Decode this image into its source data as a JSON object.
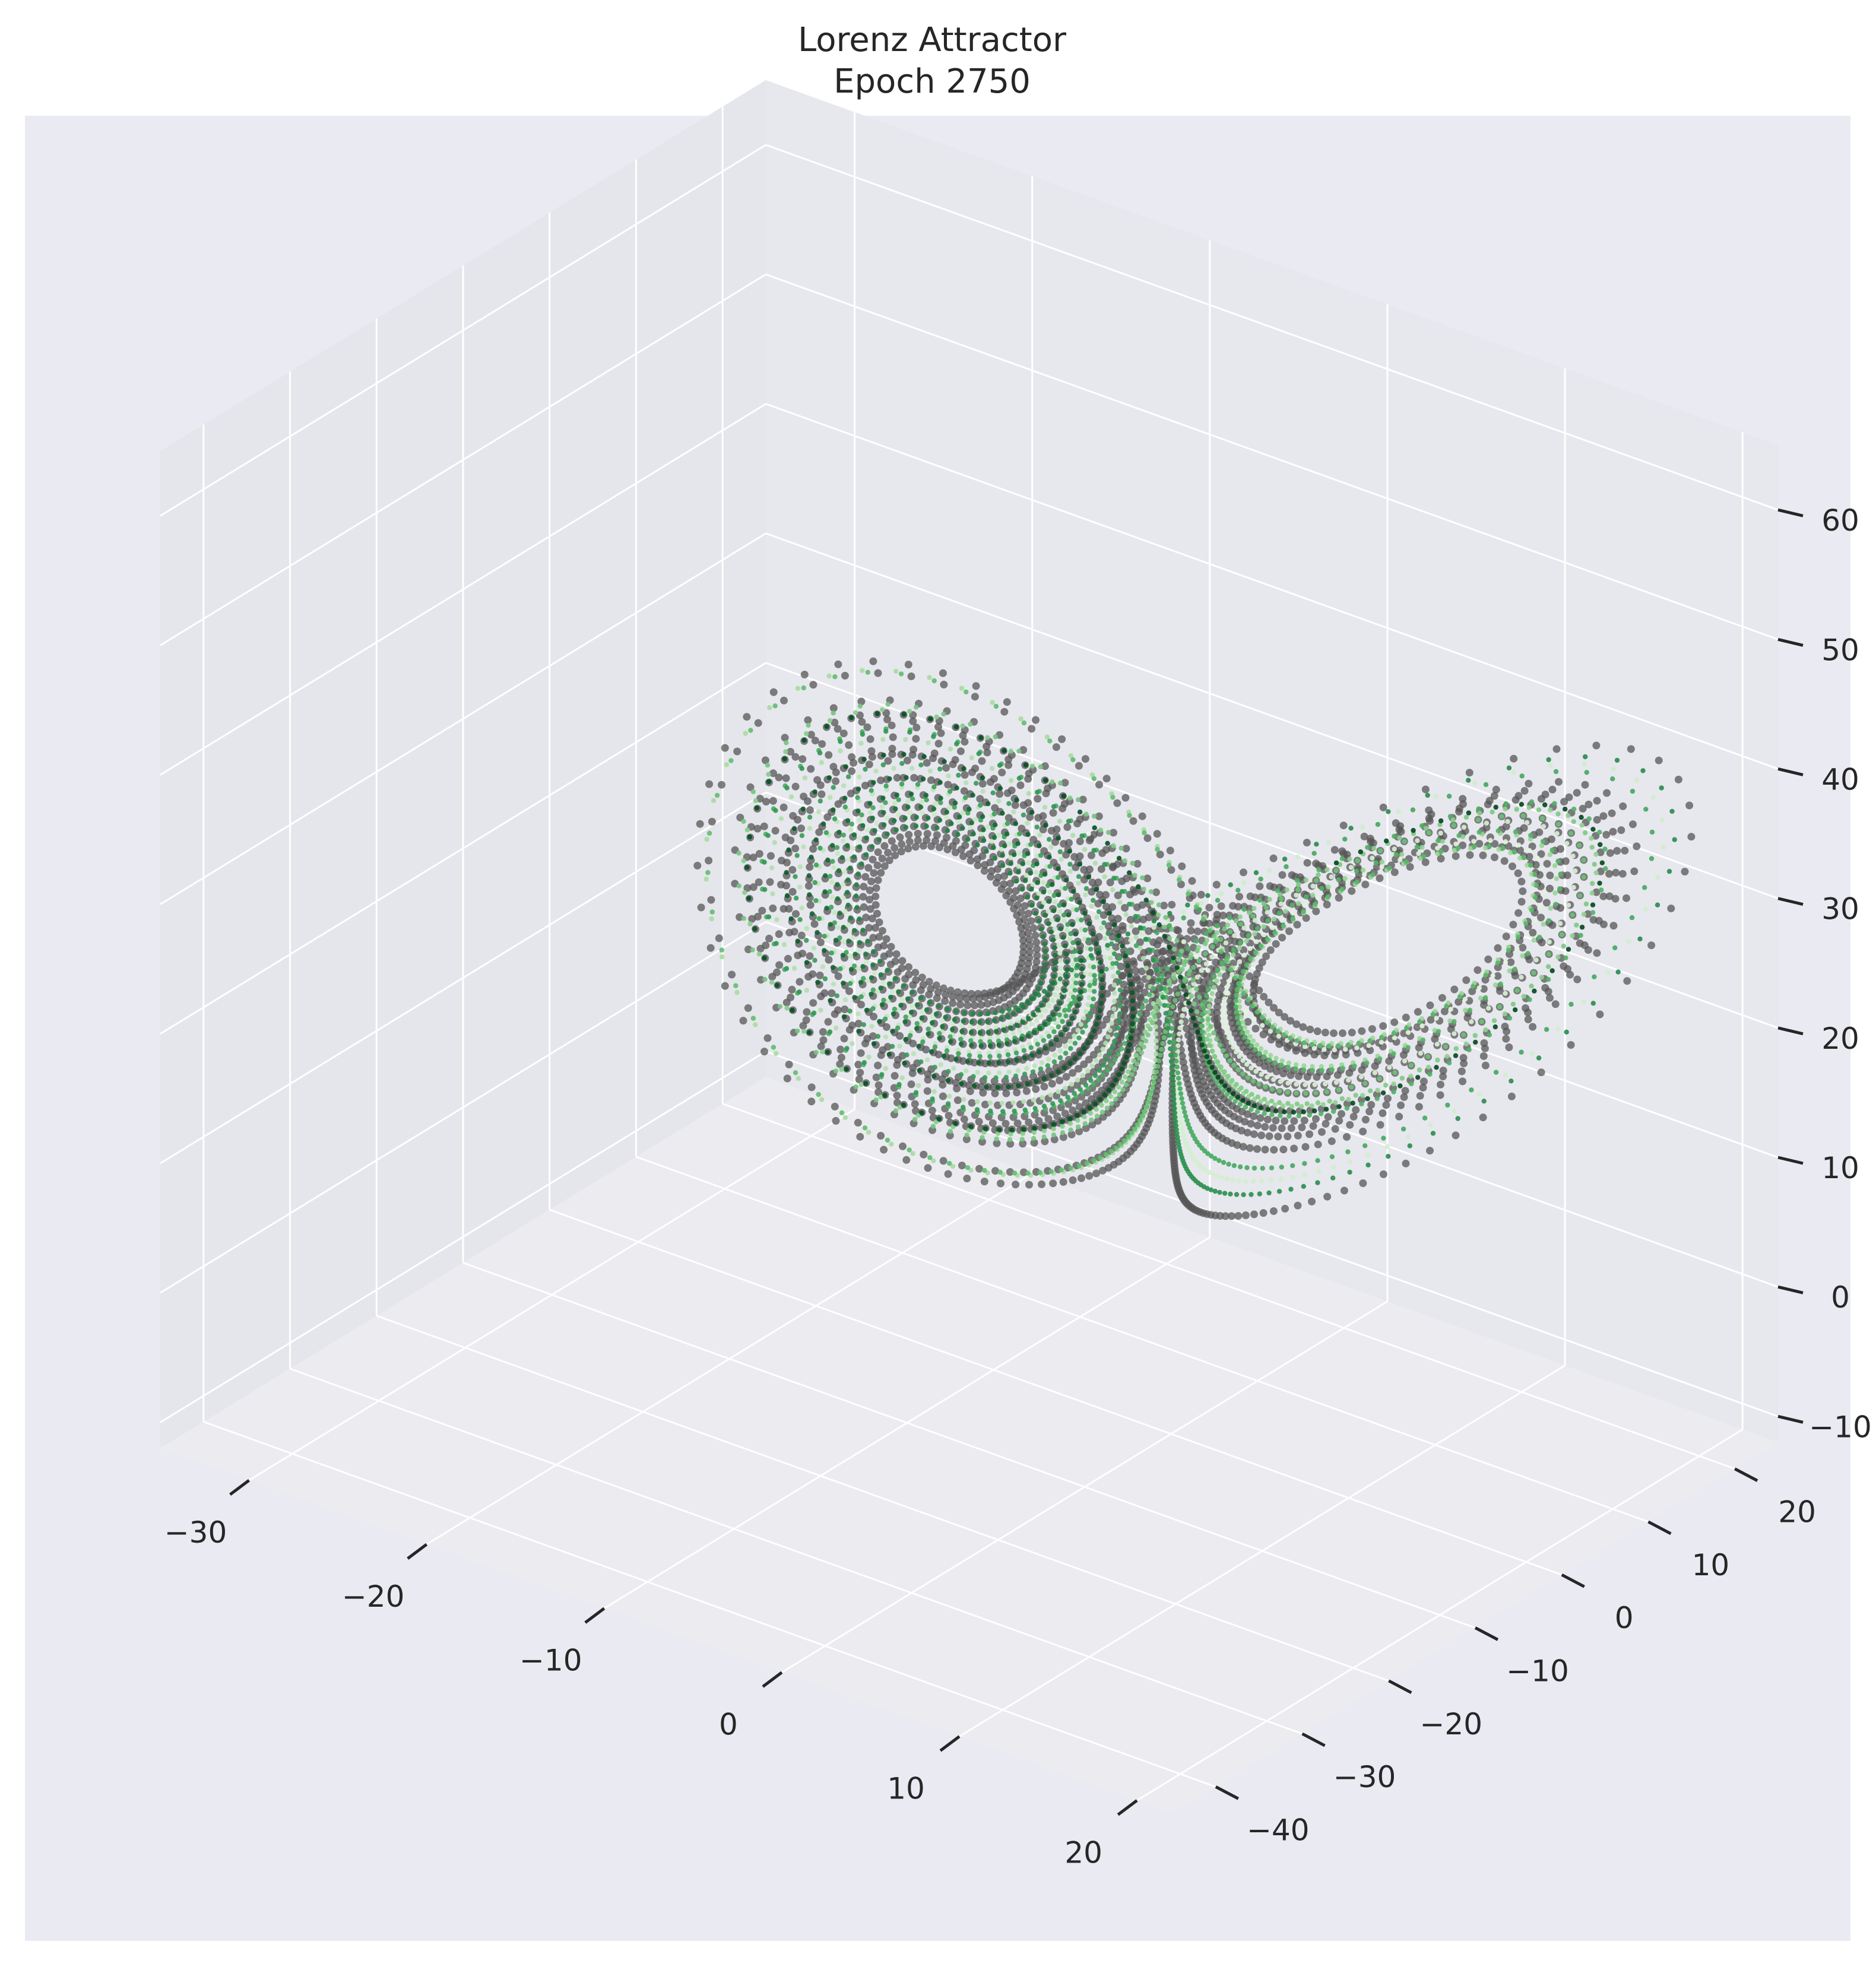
{
  "chart_data": {
    "type": "scatter",
    "projection": "3d",
    "title": "Lorenz Attractor\nEpoch 2750",
    "title_lines": [
      "Lorenz Attractor",
      "Epoch 2750"
    ],
    "xlabel": "",
    "ylabel": "",
    "zlabel": "",
    "grid": true,
    "legend": "none",
    "xlim": [
      -35,
      22
    ],
    "ylim": [
      -45,
      25
    ],
    "zlim": [
      -12,
      65
    ],
    "x_ticks": [
      -30,
      -20,
      -10,
      0,
      10,
      20
    ],
    "y_ticks": [
      -40,
      -30,
      -20,
      -10,
      0,
      10,
      20
    ],
    "z_ticks": [
      -10,
      0,
      10,
      20,
      30,
      40,
      50,
      60
    ],
    "x_tick_labels": [
      "−30",
      "−20",
      "−10",
      "0",
      "10",
      "20"
    ],
    "y_tick_labels": [
      "−40",
      "−30",
      "−20",
      "−10",
      "0",
      "10",
      "20"
    ],
    "z_tick_labels": [
      "−10",
      "0",
      "10",
      "20",
      "30",
      "40",
      "50",
      "60"
    ],
    "series": [
      {
        "kind": "reference",
        "color": "#555555",
        "marker_size": "large",
        "sigma": 10,
        "rho": 28,
        "beta": 2.6667,
        "initial": [
          -8.0,
          7.0,
          27.0
        ],
        "dt": 0.01,
        "samples": 2600
      },
      {
        "kind": "prediction",
        "colormap": [
          "#e6f5e1",
          "#a6dba0",
          "#5bbb6b",
          "#2e9551",
          "#00441b"
        ],
        "marker_size": "small",
        "sigma": 10,
        "rho": 28,
        "beta": 2.6667,
        "initial": [
          -8.2,
          7.3,
          27.3
        ],
        "dt": 0.01,
        "samples": 2600
      }
    ]
  },
  "colors": {
    "axes_background": "#eaeaf2",
    "pane_left": "#e5e5ec",
    "pane_right": "#e7e7ee",
    "pane_floor": "#ebebf0",
    "gridline": "#ffffff",
    "tick_mark": "#262626",
    "text": "#262626"
  }
}
